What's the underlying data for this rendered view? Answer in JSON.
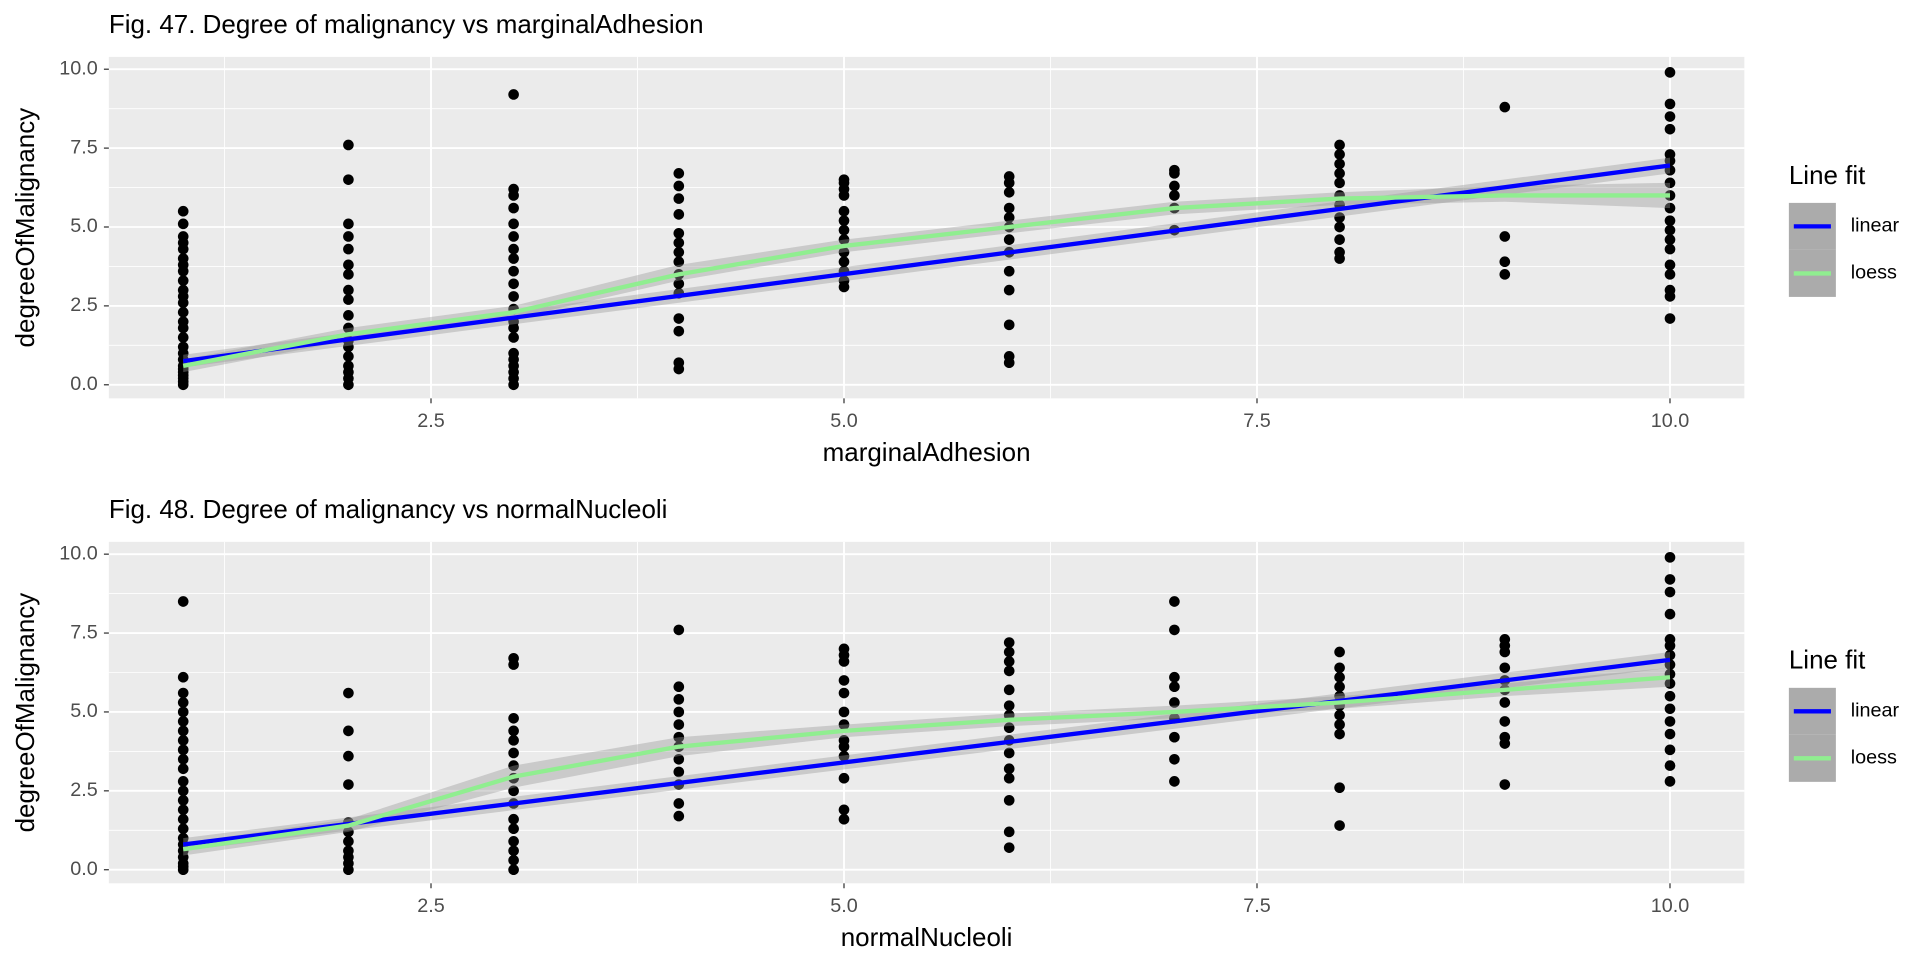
{
  "chart_data": [
    {
      "type": "scatter",
      "title": "Fig. 47. Degree of malignancy vs marginalAdhesion",
      "x_label": "marginalAdhesion",
      "y_label": "degreeOfMalignancy",
      "xlim": [
        0.55,
        10.45
      ],
      "ylim": [
        -0.43,
        10.39
      ],
      "xticks": [
        2.5,
        {
          "value": 5,
          "label": "5.0"
        },
        7.5,
        {
          "value": 10,
          "label": "10.0"
        }
      ],
      "yticks": [
        {
          "value": 0,
          "label": "0.0"
        },
        2.5,
        {
          "value": 5,
          "label": "5.0"
        },
        7.5,
        {
          "value": 10,
          "label": "10.0"
        }
      ],
      "x_minor_ticks": [
        1.25,
        3.75,
        6.25,
        8.75
      ],
      "y_minor_ticks": [
        1.25,
        3.75,
        6.25,
        8.75
      ],
      "grid": true,
      "point_color": "#000000",
      "points": {
        "x": [
          1,
          1,
          1,
          1,
          1,
          1,
          1,
          1,
          1,
          1,
          1,
          1,
          1,
          1,
          1,
          1,
          1,
          1,
          1,
          1,
          1,
          1,
          1,
          1,
          1,
          1,
          2,
          2,
          2,
          2,
          2,
          2,
          2,
          2,
          2,
          2,
          2,
          2,
          2,
          2,
          2,
          2,
          2,
          2,
          3,
          3,
          3,
          3,
          3,
          3,
          3,
          3,
          3,
          3,
          3,
          3,
          3,
          3,
          3,
          3,
          3,
          3,
          3,
          3,
          3,
          4,
          4,
          4,
          4,
          4,
          4,
          4,
          4,
          4,
          4,
          4,
          4,
          4,
          4,
          4,
          5,
          5,
          5,
          5,
          5,
          5,
          5,
          5,
          5,
          5,
          5,
          5,
          5,
          6,
          6,
          6,
          6,
          6,
          6,
          6,
          6,
          6,
          6,
          6,
          6,
          6,
          7,
          7,
          7,
          7,
          7,
          7,
          8,
          8,
          8,
          8,
          8,
          8,
          8,
          8,
          8,
          8,
          8,
          8,
          9,
          9,
          9,
          9,
          10,
          10,
          10,
          10,
          10,
          10,
          10,
          10,
          10,
          10,
          10,
          10,
          10,
          10,
          10,
          10,
          10,
          10,
          10
        ],
        "y": [
          0.0,
          0.1,
          0.2,
          0.3,
          0.4,
          0.5,
          0.6,
          0.8,
          1.0,
          1.2,
          1.5,
          1.8,
          2.0,
          2.3,
          2.6,
          2.8,
          3.0,
          3.3,
          3.6,
          3.8,
          4.0,
          4.3,
          4.5,
          4.7,
          5.1,
          5.5,
          0.0,
          0.2,
          0.4,
          0.6,
          0.9,
          1.2,
          1.4,
          1.8,
          2.2,
          2.7,
          3.0,
          3.5,
          3.8,
          4.3,
          4.7,
          5.1,
          6.5,
          7.6,
          0.0,
          0.2,
          0.4,
          0.6,
          0.8,
          1.0,
          1.5,
          1.8,
          2.0,
          2.4,
          2.8,
          3.2,
          3.6,
          4.0,
          4.3,
          4.7,
          5.1,
          5.6,
          6.0,
          6.2,
          9.2,
          0.5,
          0.7,
          1.7,
          2.1,
          2.9,
          3.2,
          3.5,
          3.9,
          4.2,
          4.5,
          4.8,
          5.4,
          5.9,
          6.3,
          6.7,
          3.1,
          3.3,
          3.6,
          3.9,
          4.2,
          4.6,
          4.9,
          5.2,
          5.5,
          6.0,
          6.2,
          6.4,
          6.5,
          0.7,
          0.9,
          1.9,
          3.0,
          3.6,
          4.2,
          4.6,
          5.0,
          5.3,
          5.6,
          6.1,
          6.4,
          6.6,
          4.9,
          5.6,
          6.0,
          6.3,
          6.7,
          6.8,
          4.0,
          4.2,
          4.6,
          5.0,
          5.3,
          5.7,
          6.0,
          6.4,
          6.7,
          7.0,
          7.3,
          7.6,
          3.5,
          3.9,
          4.7,
          8.8,
          2.1,
          2.8,
          3.0,
          3.5,
          3.8,
          4.3,
          4.6,
          4.9,
          5.2,
          5.6,
          6.0,
          6.4,
          6.8,
          7.1,
          7.3,
          8.1,
          8.5,
          8.9,
          9.9
        ]
      },
      "legend_title": "Line fit",
      "band_color": "#999999",
      "fits": [
        {
          "name": "linear",
          "color": "#0000ff",
          "x": [
            1,
            10
          ],
          "values": [
            0.75,
            6.95
          ],
          "band_lower": [
            0.55,
            6.7
          ],
          "band_upper": [
            0.95,
            7.2
          ]
        },
        {
          "name": "loess",
          "color": "#90ee90",
          "x": [
            1,
            2,
            3,
            4,
            5,
            6,
            7,
            8,
            9,
            10
          ],
          "values": [
            0.6,
            1.6,
            2.3,
            3.5,
            4.4,
            5.0,
            5.6,
            5.9,
            6.0,
            6.0
          ],
          "band_lower": [
            0.4,
            1.4,
            2.1,
            3.3,
            4.2,
            4.8,
            5.4,
            5.7,
            5.8,
            5.6
          ],
          "band_upper": [
            0.8,
            1.8,
            2.5,
            3.8,
            4.6,
            5.2,
            5.8,
            6.1,
            6.3,
            6.4
          ]
        }
      ]
    },
    {
      "type": "scatter",
      "title": "Fig. 48. Degree of malignancy vs normalNucleoli",
      "x_label": "normalNucleoli",
      "y_label": "degreeOfMalignancy",
      "xlim": [
        0.55,
        10.45
      ],
      "ylim": [
        -0.43,
        10.39
      ],
      "xticks": [
        2.5,
        {
          "value": 5,
          "label": "5.0"
        },
        7.5,
        {
          "value": 10,
          "label": "10.0"
        }
      ],
      "yticks": [
        {
          "value": 0,
          "label": "0.0"
        },
        2.5,
        {
          "value": 5,
          "label": "5.0"
        },
        7.5,
        {
          "value": 10,
          "label": "10.0"
        }
      ],
      "x_minor_ticks": [
        1.25,
        3.75,
        6.25,
        8.75
      ],
      "y_minor_ticks": [
        1.25,
        3.75,
        6.25,
        8.75
      ],
      "grid": true,
      "point_color": "#000000",
      "points": {
        "x": [
          1,
          1,
          1,
          1,
          1,
          1,
          1,
          1,
          1,
          1,
          1,
          1,
          1,
          1,
          1,
          1,
          1,
          1,
          1,
          1,
          1,
          1,
          1,
          1,
          2,
          2,
          2,
          2,
          2,
          2,
          2,
          2,
          2,
          2,
          2,
          3,
          3,
          3,
          3,
          3,
          3,
          3,
          3,
          3,
          3,
          3,
          3,
          3,
          3,
          3,
          3,
          4,
          4,
          4,
          4,
          4,
          4,
          4,
          4,
          4,
          4,
          4,
          4,
          5,
          5,
          5,
          5,
          5,
          5,
          5,
          5,
          5,
          5,
          5,
          5,
          5,
          6,
          6,
          6,
          6,
          6,
          6,
          6,
          6,
          6,
          6,
          6,
          6,
          6,
          6,
          6,
          7,
          7,
          7,
          7,
          7,
          7,
          7,
          7,
          7,
          8,
          8,
          8,
          8,
          8,
          8,
          8,
          8,
          8,
          8,
          8,
          9,
          9,
          9,
          9,
          9,
          9,
          9,
          9,
          9,
          9,
          9,
          10,
          10,
          10,
          10,
          10,
          10,
          10,
          10,
          10,
          10,
          10,
          10,
          10,
          10,
          10,
          10,
          10
        ],
        "y": [
          0.0,
          0.1,
          0.2,
          0.4,
          0.6,
          0.8,
          1.0,
          1.3,
          1.6,
          1.9,
          2.2,
          2.5,
          2.8,
          3.2,
          3.5,
          3.8,
          4.1,
          4.4,
          4.7,
          5.0,
          5.3,
          5.6,
          6.1,
          8.5,
          0.0,
          0.2,
          0.4,
          0.6,
          0.9,
          1.2,
          1.5,
          2.7,
          3.6,
          4.4,
          5.6,
          0.0,
          0.3,
          0.6,
          0.9,
          1.3,
          1.6,
          2.1,
          2.5,
          2.9,
          3.3,
          3.7,
          4.1,
          4.4,
          4.8,
          6.5,
          6.7,
          1.7,
          2.1,
          2.7,
          3.1,
          3.5,
          3.9,
          4.2,
          4.6,
          5.0,
          5.4,
          5.8,
          7.6,
          1.6,
          1.9,
          2.9,
          3.6,
          3.9,
          4.1,
          4.6,
          5.0,
          5.6,
          6.0,
          6.6,
          6.8,
          7.0,
          0.7,
          1.2,
          2.2,
          2.9,
          3.2,
          3.7,
          4.1,
          4.5,
          4.9,
          5.2,
          5.7,
          6.3,
          6.6,
          6.9,
          7.2,
          2.8,
          3.5,
          4.2,
          4.8,
          5.3,
          5.8,
          6.1,
          7.6,
          8.5,
          1.4,
          2.6,
          4.3,
          4.6,
          4.9,
          5.2,
          5.5,
          5.8,
          6.1,
          6.4,
          6.9,
          2.7,
          4.0,
          4.2,
          4.7,
          5.3,
          5.7,
          6.0,
          6.4,
          6.9,
          7.1,
          7.3,
          2.8,
          3.3,
          3.8,
          4.3,
          4.7,
          5.1,
          5.5,
          5.9,
          6.2,
          6.5,
          6.8,
          7.1,
          7.3,
          8.1,
          8.8,
          9.2,
          9.9
        ]
      },
      "legend_title": "Line fit",
      "band_color": "#999999",
      "fits": [
        {
          "name": "linear",
          "color": "#0000ff",
          "x": [
            1,
            10
          ],
          "values": [
            0.8,
            6.65
          ],
          "band_lower": [
            0.6,
            6.4
          ],
          "band_upper": [
            1.0,
            6.9
          ]
        },
        {
          "name": "loess",
          "color": "#90ee90",
          "x": [
            1,
            2,
            3,
            4,
            5,
            6,
            7,
            8,
            9,
            10
          ],
          "values": [
            0.65,
            1.4,
            2.95,
            3.9,
            4.4,
            4.75,
            5.0,
            5.3,
            5.7,
            6.1
          ],
          "band_lower": [
            0.45,
            1.2,
            2.6,
            3.6,
            4.2,
            4.55,
            4.8,
            5.1,
            5.5,
            5.8
          ],
          "band_upper": [
            0.85,
            1.6,
            3.3,
            4.2,
            4.6,
            4.95,
            5.2,
            5.5,
            5.9,
            6.4
          ]
        }
      ]
    }
  ]
}
